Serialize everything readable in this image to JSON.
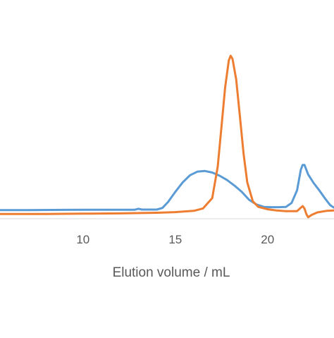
{
  "chart_data": {
    "type": "line",
    "title": "",
    "xlabel": "Elution volume / mL",
    "ylabel": "",
    "xlim": [
      5.5,
      23.6
    ],
    "ylim": [
      -0.03,
      1.0
    ],
    "x_ticks": [
      10,
      15,
      20
    ],
    "x_tick_labels": [
      "10",
      "15",
      "20"
    ],
    "grid": false,
    "legend": "none",
    "series": [
      {
        "color": "#5B9BD5",
        "points": [
          [
            5.5,
            0.025
          ],
          [
            7.0,
            0.025
          ],
          [
            9.0,
            0.026
          ],
          [
            11.0,
            0.027
          ],
          [
            12.8,
            0.027
          ],
          [
            13.0,
            0.033
          ],
          [
            13.2,
            0.028
          ],
          [
            14.0,
            0.028
          ],
          [
            14.3,
            0.038
          ],
          [
            14.6,
            0.075
          ],
          [
            15.0,
            0.14
          ],
          [
            15.4,
            0.2
          ],
          [
            15.8,
            0.245
          ],
          [
            16.2,
            0.268
          ],
          [
            16.6,
            0.272
          ],
          [
            17.0,
            0.262
          ],
          [
            17.4,
            0.242
          ],
          [
            17.8,
            0.215
          ],
          [
            18.2,
            0.18
          ],
          [
            18.6,
            0.14
          ],
          [
            19.0,
            0.09
          ],
          [
            19.4,
            0.06
          ],
          [
            19.8,
            0.045
          ],
          [
            20.2,
            0.043
          ],
          [
            20.6,
            0.043
          ],
          [
            21.0,
            0.045
          ],
          [
            21.3,
            0.07
          ],
          [
            21.6,
            0.15
          ],
          [
            21.8,
            0.28
          ],
          [
            21.9,
            0.31
          ],
          [
            22.0,
            0.31
          ],
          [
            22.2,
            0.25
          ],
          [
            22.5,
            0.195
          ],
          [
            22.8,
            0.15
          ],
          [
            23.1,
            0.1
          ],
          [
            23.4,
            0.055
          ],
          [
            23.6,
            0.04
          ]
        ]
      },
      {
        "color": "#ED7D31",
        "points": [
          [
            5.5,
            0.0
          ],
          [
            8.0,
            0.0
          ],
          [
            10.0,
            0.002
          ],
          [
            12.0,
            0.004
          ],
          [
            14.0,
            0.008
          ],
          [
            15.0,
            0.012
          ],
          [
            16.0,
            0.02
          ],
          [
            16.5,
            0.035
          ],
          [
            17.0,
            0.1
          ],
          [
            17.3,
            0.3
          ],
          [
            17.5,
            0.55
          ],
          [
            17.7,
            0.8
          ],
          [
            17.9,
            0.97
          ],
          [
            18.0,
            1.0
          ],
          [
            18.1,
            0.98
          ],
          [
            18.3,
            0.85
          ],
          [
            18.5,
            0.62
          ],
          [
            18.7,
            0.38
          ],
          [
            18.9,
            0.2
          ],
          [
            19.2,
            0.08
          ],
          [
            19.5,
            0.045
          ],
          [
            20.0,
            0.03
          ],
          [
            20.5,
            0.022
          ],
          [
            21.0,
            0.018
          ],
          [
            21.6,
            0.018
          ],
          [
            21.8,
            0.04
          ],
          [
            21.9,
            0.05
          ],
          [
            22.0,
            0.035
          ],
          [
            22.1,
            0.0
          ],
          [
            22.2,
            -0.02
          ],
          [
            22.4,
            -0.005
          ],
          [
            22.7,
            0.01
          ],
          [
            23.2,
            0.02
          ],
          [
            23.6,
            0.022
          ]
        ]
      }
    ]
  }
}
